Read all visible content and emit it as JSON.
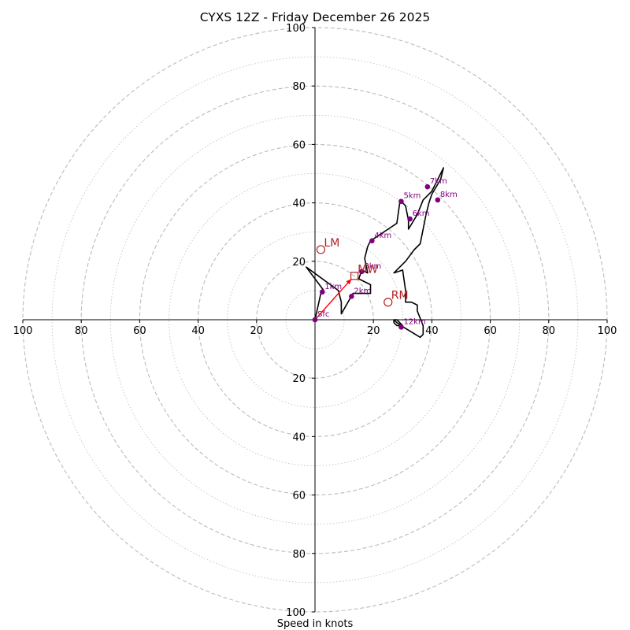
{
  "chart_data": {
    "type": "hodograph",
    "title": "CYXS 12Z - Friday December 26 2025",
    "xlabel": "Speed in knots",
    "range": [
      -100,
      100
    ],
    "major_rings": [
      20,
      40,
      60,
      80,
      100
    ],
    "minor_rings": [
      10,
      30,
      50,
      70,
      90
    ],
    "x_tick_labels": [
      "100",
      "80",
      "60",
      "40",
      "20",
      "20",
      "40",
      "60",
      "80",
      "100"
    ],
    "y_tick_labels": [
      "100",
      "80",
      "60",
      "40",
      "20",
      "20",
      "40",
      "60",
      "80",
      "100"
    ],
    "hodograph_trace": [
      [
        0,
        0
      ],
      [
        2,
        9
      ],
      [
        3,
        10
      ],
      [
        -3,
        18
      ],
      [
        8,
        10
      ],
      [
        9,
        6
      ],
      [
        9,
        2
      ],
      [
        13,
        9
      ],
      [
        19,
        9
      ],
      [
        19,
        12
      ],
      [
        15,
        14
      ],
      [
        16,
        17
      ],
      [
        18,
        16
      ],
      [
        17,
        21
      ],
      [
        18,
        25
      ],
      [
        19,
        27
      ],
      [
        22,
        29
      ],
      [
        25,
        31
      ],
      [
        28,
        33
      ],
      [
        29,
        40
      ],
      [
        29,
        41
      ],
      [
        31,
        39
      ],
      [
        32,
        34
      ],
      [
        32,
        31
      ],
      [
        35,
        36
      ],
      [
        37,
        41
      ],
      [
        40,
        44
      ],
      [
        44,
        52
      ],
      [
        43,
        48
      ],
      [
        40,
        43
      ],
      [
        39,
        40
      ],
      [
        38,
        36
      ],
      [
        37,
        31
      ],
      [
        36,
        26
      ],
      [
        34,
        24
      ],
      [
        31,
        20
      ],
      [
        27,
        16
      ],
      [
        30,
        17
      ],
      [
        31,
        10
      ],
      [
        31,
        9
      ],
      [
        31,
        6
      ],
      [
        33,
        6
      ],
      [
        35,
        5
      ],
      [
        35,
        3
      ],
      [
        37,
        -2
      ],
      [
        37,
        -5
      ],
      [
        36,
        -6
      ],
      [
        31,
        -3
      ],
      [
        28,
        -1
      ],
      [
        27,
        0
      ],
      [
        28,
        0
      ],
      [
        30,
        -2
      ],
      [
        30,
        -3
      ],
      [
        29,
        -2
      ],
      [
        28,
        -2
      ],
      [
        27,
        -1
      ],
      [
        27,
        0
      ]
    ],
    "height_markers": [
      {
        "label": "Sfc",
        "u": 0,
        "v": 0
      },
      {
        "label": "1km",
        "u": 2.5,
        "v": 9.5
      },
      {
        "label": "2km",
        "u": 12.5,
        "v": 8
      },
      {
        "label": "3km",
        "u": 16,
        "v": 16.5
      },
      {
        "label": "4km",
        "u": 19.5,
        "v": 27
      },
      {
        "label": "5km",
        "u": 29.5,
        "v": 40.5
      },
      {
        "label": "6km",
        "u": 32.5,
        "v": 34.5
      },
      {
        "label": "7km",
        "u": 38.5,
        "v": 45.5
      },
      {
        "label": "8km",
        "u": 42,
        "v": 41
      },
      {
        "label": "12km",
        "u": 29.5,
        "v": -2.5
      }
    ],
    "storm_motion": [
      {
        "label": "LM",
        "u": 2,
        "v": 24,
        "symbol": "circle"
      },
      {
        "label": "RM",
        "u": 25,
        "v": 6,
        "symbol": "circle"
      },
      {
        "label": "MW",
        "u": 13.5,
        "v": 15,
        "symbol": "square"
      }
    ],
    "shear_vector": {
      "from": [
        0,
        0
      ],
      "to": [
        12.5,
        14
      ]
    },
    "colors": {
      "trace": "#000000",
      "markers": "#800080",
      "storm_labels": "#b22222",
      "shear": "#ff0000",
      "grid": "#bbbbbb"
    }
  }
}
